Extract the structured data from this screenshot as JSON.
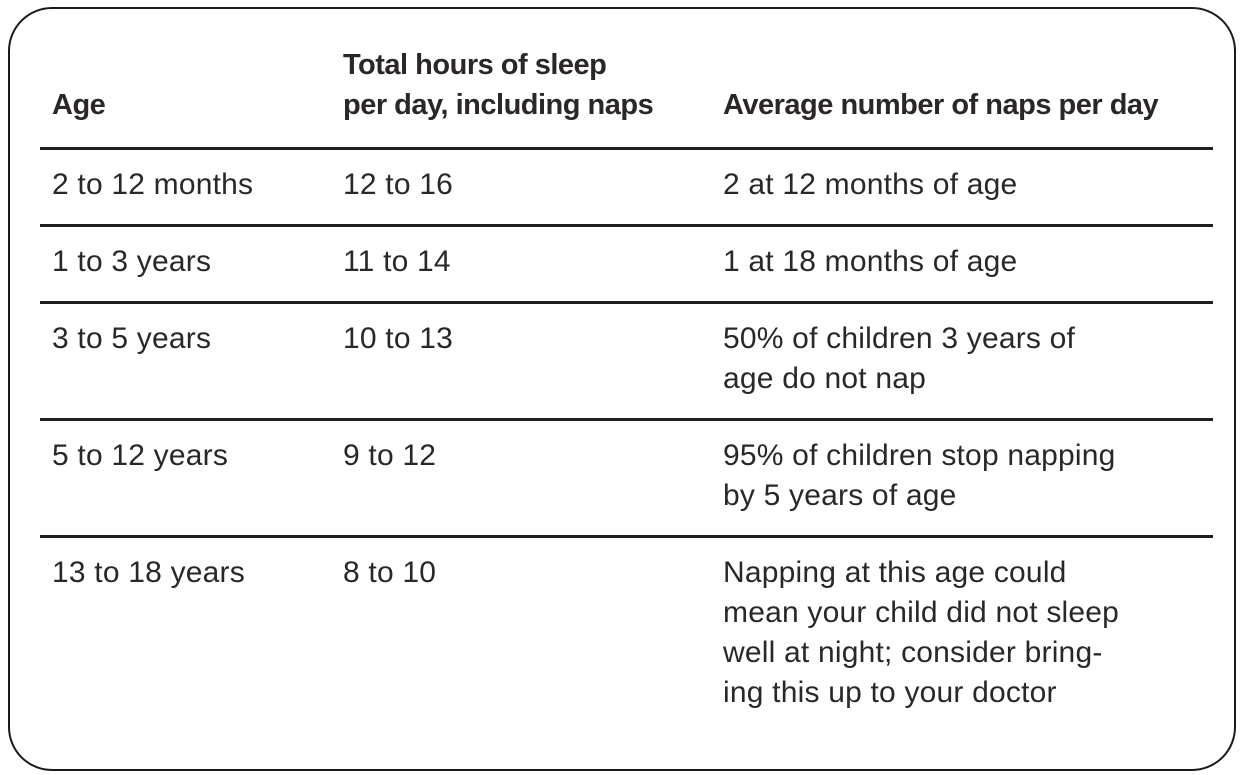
{
  "table": {
    "headers": {
      "age": "Age",
      "hours": "Total hours of sleep\nper day, including naps",
      "naps": "Average number of naps per day"
    },
    "rows": [
      {
        "age": "2 to 12 months",
        "hours": "12 to 16",
        "naps": "2 at 12 months of age"
      },
      {
        "age": "1 to 3 years",
        "hours": "11 to 14",
        "naps": "1 at 18 months of age"
      },
      {
        "age": "3 to 5 years",
        "hours": "10 to 13",
        "naps": "50% of children 3 years of\nage do not nap"
      },
      {
        "age": "5 to 12 years",
        "hours": "9 to 12",
        "naps": "95% of children stop napping\nby 5 years of age"
      },
      {
        "age": "13 to 18 years",
        "hours": "8 to 10",
        "naps": "Napping at this age could\nmean your child did not sleep\nwell at night; consider bring-\ning this up to your doctor"
      }
    ],
    "colors": {
      "text": "#2b2728",
      "rule_line": "#1f1f1f",
      "border": "#1b1b1b",
      "background": "#ffffff"
    }
  }
}
